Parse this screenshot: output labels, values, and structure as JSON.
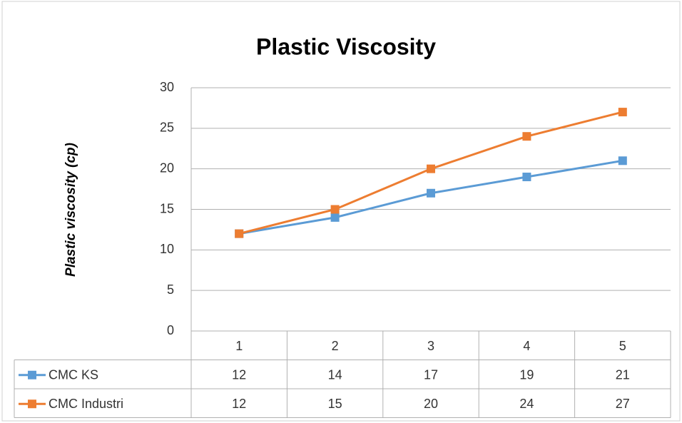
{
  "chart_data": {
    "type": "line",
    "title": "Plastic Viscosity",
    "y_label": "Plastic viscosity (cp)",
    "categories": [
      "1",
      "2",
      "3",
      "4",
      "5"
    ],
    "series": [
      {
        "name": "CMC KS",
        "color": "#5b9bd5",
        "values": [
          12,
          14,
          17,
          19,
          21
        ]
      },
      {
        "name": "CMC Industri",
        "color": "#ed7d31",
        "values": [
          12,
          15,
          20,
          24,
          27
        ]
      }
    ],
    "ylim": [
      0,
      30
    ],
    "yticks": [
      0,
      5,
      10,
      15,
      20,
      25,
      30
    ],
    "grid": true,
    "data_table": true
  }
}
